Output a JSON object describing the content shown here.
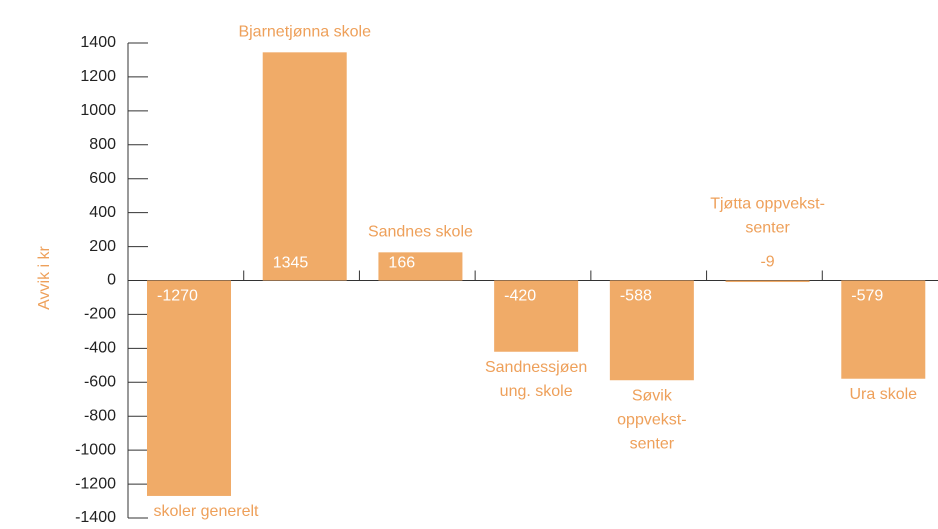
{
  "chart_data": {
    "type": "bar",
    "y_label": "Avvik i kr",
    "categories": [
      [
        "skoler generelt"
      ],
      [
        "Bjarnetjønna skole"
      ],
      [
        "Sandnes skole"
      ],
      [
        "Sandnessjøen",
        "ung. skole"
      ],
      [
        "Søvik",
        "oppvekst-",
        "senter"
      ],
      [
        "Tjøtta oppvekst-",
        "senter"
      ],
      [
        "Ura skole"
      ]
    ],
    "values": [
      -1270,
      1345,
      166,
      -420,
      -588,
      -9,
      -579
    ],
    "color": "#f0ab68",
    "label_color": "#eea05a",
    "ylim": [
      -1400,
      1400
    ],
    "yticks": [
      -1400,
      -1200,
      -1000,
      -800,
      -600,
      -400,
      -200,
      0,
      200,
      400,
      600,
      800,
      1000,
      1200,
      1400
    ],
    "grid": false
  }
}
